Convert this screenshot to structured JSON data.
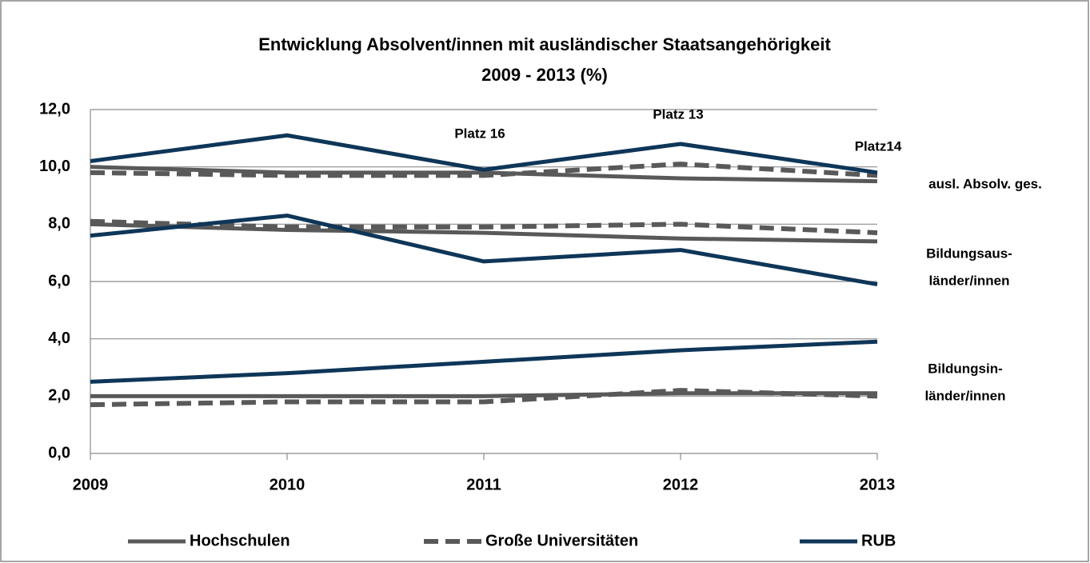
{
  "chart_data": {
    "type": "line",
    "title": [
      "Entwicklung Absolvent/innen mit ausländischer Staatsangehörigkeit",
      "2009 - 2013  (%)"
    ],
    "categories": [
      "2009",
      "2010",
      "2011",
      "2012",
      "2013"
    ],
    "ylim": [
      0,
      12
    ],
    "yticks": [
      {
        "value": 0,
        "label": "0,0"
      },
      {
        "value": 2,
        "label": "2,0"
      },
      {
        "value": 4,
        "label": "4,0"
      },
      {
        "value": 6,
        "label": "6,0"
      },
      {
        "value": 8,
        "label": "8,0"
      },
      {
        "value": 10,
        "label": "10,0"
      },
      {
        "value": 12,
        "label": "12,0"
      }
    ],
    "grid": true,
    "legend": "bottom",
    "series": [
      {
        "name": "Hochschulen",
        "color": "#595959",
        "dashed": false,
        "values": [
          10.0,
          9.8,
          9.8,
          9.6,
          9.5
        ]
      },
      {
        "name": "Große Universitäten",
        "color": "#595959",
        "dashed": true,
        "values": [
          9.8,
          9.7,
          9.7,
          10.1,
          9.7
        ]
      },
      {
        "name": "RUB",
        "color": "#0e3658",
        "dashed": false,
        "values": [
          10.2,
          11.1,
          9.9,
          10.8,
          9.8
        ]
      },
      {
        "name": "Hochschulen",
        "color": "#595959",
        "dashed": false,
        "values": [
          8.0,
          7.8,
          7.7,
          7.5,
          7.4
        ]
      },
      {
        "name": "Große Universitäten",
        "color": "#595959",
        "dashed": true,
        "values": [
          8.1,
          7.9,
          7.9,
          8.0,
          7.7
        ]
      },
      {
        "name": "RUB",
        "color": "#0e3658",
        "dashed": false,
        "values": [
          7.6,
          8.3,
          6.7,
          7.1,
          5.9
        ]
      },
      {
        "name": "Hochschulen",
        "color": "#595959",
        "dashed": false,
        "values": [
          2.0,
          2.0,
          2.0,
          2.1,
          2.1
        ]
      },
      {
        "name": "Große Universitäten",
        "color": "#595959",
        "dashed": true,
        "values": [
          1.7,
          1.8,
          1.8,
          2.2,
          2.0
        ]
      },
      {
        "name": "RUB",
        "color": "#0e3658",
        "dashed": false,
        "values": [
          2.5,
          2.8,
          3.2,
          3.6,
          3.9
        ]
      }
    ],
    "annotations": [
      [
        "Platz 16"
      ],
      [
        "Platz 13"
      ],
      [
        "Platz14"
      ],
      [
        "ausl. Absolv. ges."
      ],
      [
        "Bildungsaus-",
        "länder/innen"
      ],
      [
        "Bildungsin-",
        "länder/innen"
      ]
    ]
  }
}
